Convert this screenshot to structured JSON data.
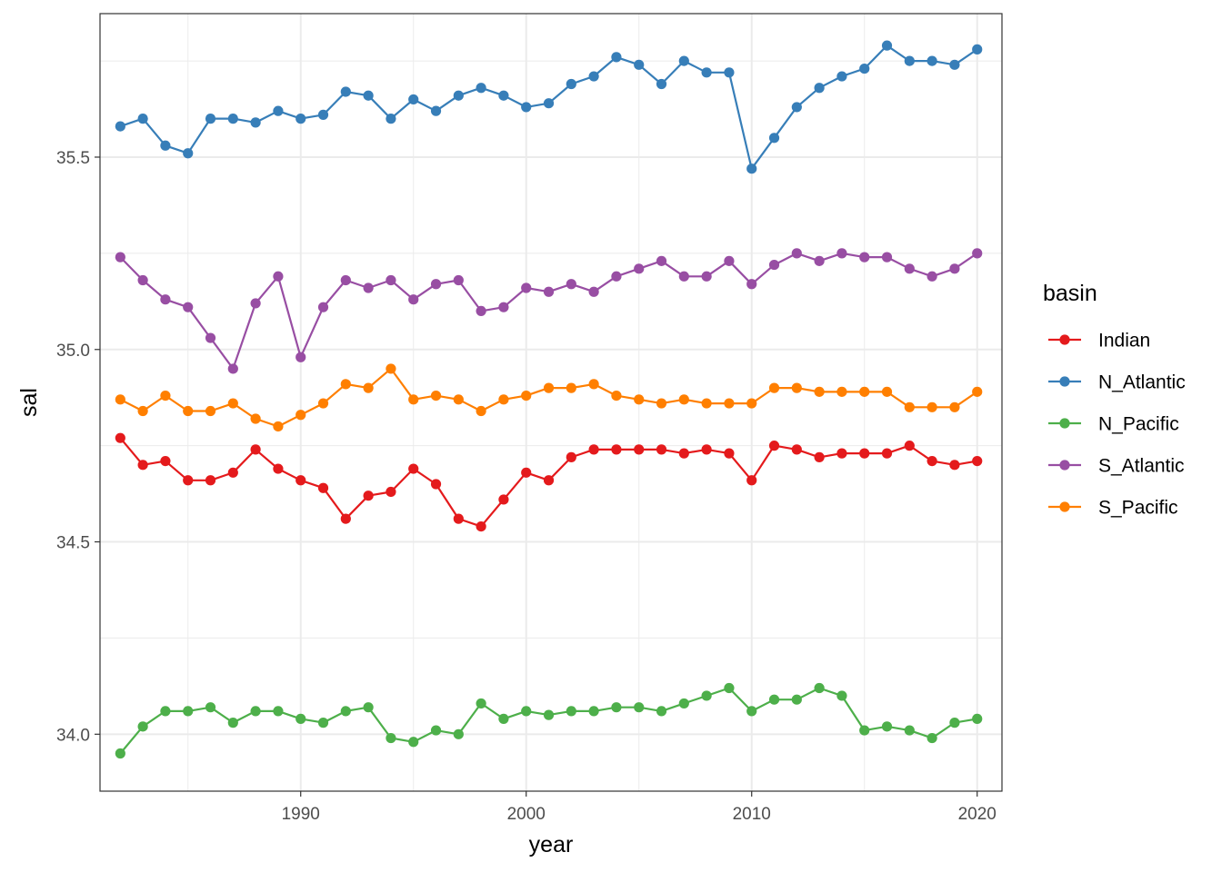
{
  "chart_data": {
    "type": "line",
    "title": "",
    "xlabel": "year",
    "ylabel": "sal",
    "xlim": [
      1981.1,
      2021.1
    ],
    "ylim": [
      33.852,
      35.873
    ],
    "x_ticks": [
      1990,
      2000,
      2010,
      2020
    ],
    "x_tick_labels": [
      "1990",
      "2000",
      "2010",
      "2020"
    ],
    "y_ticks": [
      34.0,
      34.5,
      35.0,
      35.5
    ],
    "y_tick_labels": [
      "34.0",
      "34.5",
      "35.0",
      "35.5"
    ],
    "grid": true,
    "legend": {
      "title": "basin",
      "position": "right"
    },
    "x": [
      1982,
      1983,
      1984,
      1985,
      1986,
      1987,
      1988,
      1989,
      1990,
      1991,
      1992,
      1993,
      1994,
      1995,
      1996,
      1997,
      1998,
      1999,
      2000,
      2001,
      2002,
      2003,
      2004,
      2005,
      2006,
      2007,
      2008,
      2009,
      2010,
      2011,
      2012,
      2013,
      2014,
      2015,
      2016,
      2017,
      2018,
      2019,
      2020
    ],
    "series": [
      {
        "name": "Indian",
        "color": "#e41a1c",
        "values": [
          34.77,
          34.7,
          34.71,
          34.66,
          34.66,
          34.68,
          34.74,
          34.69,
          34.66,
          34.64,
          34.56,
          34.62,
          34.63,
          34.69,
          34.65,
          34.56,
          34.54,
          34.61,
          34.68,
          34.66,
          34.72,
          34.74,
          34.74,
          34.74,
          34.74,
          34.73,
          34.74,
          34.73,
          34.66,
          34.75,
          34.74,
          34.72,
          34.73,
          34.73,
          34.73,
          34.75,
          34.71,
          34.7,
          34.71
        ]
      },
      {
        "name": "N_Atlantic",
        "color": "#377eb8",
        "values": [
          35.58,
          35.6,
          35.53,
          35.51,
          35.6,
          35.6,
          35.59,
          35.62,
          35.6,
          35.61,
          35.67,
          35.66,
          35.6,
          35.65,
          35.62,
          35.66,
          35.68,
          35.66,
          35.63,
          35.64,
          35.69,
          35.71,
          35.76,
          35.74,
          35.69,
          35.75,
          35.72,
          35.72,
          35.47,
          35.55,
          35.63,
          35.68,
          35.71,
          35.73,
          35.79,
          35.75,
          35.75,
          35.74,
          35.78
        ]
      },
      {
        "name": "N_Pacific",
        "color": "#4daf4a",
        "values": [
          33.95,
          34.02,
          34.06,
          34.06,
          34.07,
          34.03,
          34.06,
          34.06,
          34.04,
          34.03,
          34.06,
          34.07,
          33.99,
          33.98,
          34.01,
          34.0,
          34.08,
          34.04,
          34.06,
          34.05,
          34.06,
          34.06,
          34.07,
          34.07,
          34.06,
          34.08,
          34.1,
          34.12,
          34.06,
          34.09,
          34.09,
          34.12,
          34.1,
          34.01,
          34.02,
          34.01,
          33.99,
          34.03,
          34.04
        ]
      },
      {
        "name": "S_Atlantic",
        "color": "#984ea3",
        "values": [
          35.24,
          35.18,
          35.13,
          35.11,
          35.03,
          34.95,
          35.12,
          35.19,
          34.98,
          35.11,
          35.18,
          35.16,
          35.18,
          35.13,
          35.17,
          35.18,
          35.1,
          35.11,
          35.16,
          35.15,
          35.17,
          35.15,
          35.19,
          35.21,
          35.23,
          35.19,
          35.19,
          35.23,
          35.17,
          35.22,
          35.25,
          35.23,
          35.25,
          35.24,
          35.24,
          35.21,
          35.19,
          35.21,
          35.25
        ]
      },
      {
        "name": "S_Pacific",
        "color": "#ff7f00",
        "values": [
          34.87,
          34.84,
          34.88,
          34.84,
          34.84,
          34.86,
          34.82,
          34.8,
          34.83,
          34.86,
          34.91,
          34.9,
          34.95,
          34.87,
          34.88,
          34.87,
          34.84,
          34.87,
          34.88,
          34.9,
          34.9,
          34.91,
          34.88,
          34.87,
          34.86,
          34.87,
          34.86,
          34.86,
          34.86,
          34.9,
          34.9,
          34.89,
          34.89,
          34.89,
          34.89,
          34.85,
          34.85,
          34.85,
          34.89
        ]
      }
    ]
  }
}
